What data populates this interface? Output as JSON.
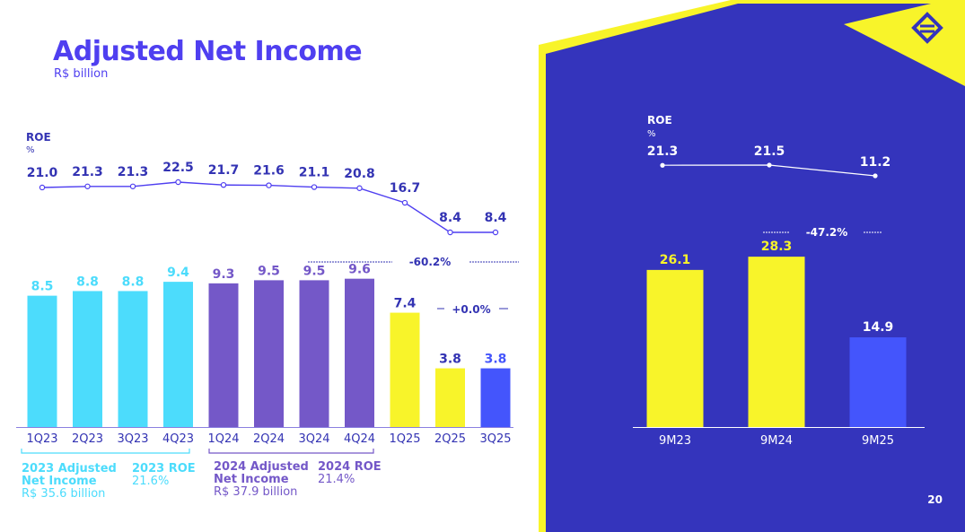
{
  "page": {
    "title": "Adjusted Net Income",
    "subtitle": "R$ billion",
    "page_number": "20"
  },
  "colors": {
    "primary": "#4f3ff0",
    "cyan": "#4cdcfc",
    "purple": "#7458c8",
    "yellow": "#f8f42a",
    "blue": "#4455fc",
    "panel": "#3434bc"
  },
  "chart_data": [
    {
      "type": "bar",
      "title": "Adjusted Net Income",
      "ylabel": "R$ billion",
      "categories": [
        "1Q23",
        "2Q23",
        "3Q23",
        "4Q23",
        "1Q24",
        "2Q24",
        "3Q24",
        "4Q24",
        "1Q25",
        "2Q25",
        "3Q25"
      ],
      "values": [
        8.5,
        8.8,
        8.8,
        9.4,
        9.3,
        9.5,
        9.5,
        9.6,
        7.4,
        3.8,
        3.8
      ],
      "value_labels": [
        "8.5",
        "8.8",
        "8.8",
        "9.4",
        "9.3",
        "9.5",
        "9.5",
        "9.6",
        "7.4",
        "3.8",
        "3.8"
      ],
      "bar_colors": [
        "#4cdcfc",
        "#4cdcfc",
        "#4cdcfc",
        "#4cdcfc",
        "#7458c8",
        "#7458c8",
        "#7458c8",
        "#7458c8",
        "#f8f42a",
        "#f8f42a",
        "#4455fc"
      ],
      "label_colors": [
        "#4cdcfc",
        "#4cdcfc",
        "#4cdcfc",
        "#4cdcfc",
        "#7458c8",
        "#7458c8",
        "#7458c8",
        "#7458c8",
        "#3333b3",
        "#3333b3",
        "#4455fc"
      ],
      "ylim": [
        0,
        10.8
      ],
      "roe": {
        "label": "ROE",
        "unit": "%",
        "values": [
          21.0,
          21.3,
          21.3,
          22.5,
          21.7,
          21.6,
          21.1,
          20.8,
          16.7,
          8.4,
          8.4
        ],
        "labels": [
          "21.0",
          "21.3",
          "21.3",
          "22.5",
          "21.7",
          "21.6",
          "21.1",
          "20.8",
          "16.7",
          "8.4",
          "8.4"
        ]
      },
      "annotations": {
        "yoy": "-60.2%",
        "qoq": "+0.0%"
      }
    },
    {
      "type": "bar",
      "categories": [
        "9M23",
        "9M24",
        "9M25"
      ],
      "values": [
        26.1,
        28.3,
        14.9
      ],
      "value_labels": [
        "26.1",
        "28.3",
        "14.9"
      ],
      "bar_colors": [
        "#f8f42a",
        "#f8f42a",
        "#4455fc"
      ],
      "label_colors": [
        "#f8f42a",
        "#f8f42a",
        "#ffffff"
      ],
      "ylim": [
        0,
        31
      ],
      "roe": {
        "label": "ROE",
        "unit": "%",
        "values": [
          21.3,
          21.5,
          11.2
        ],
        "labels": [
          "21.3",
          "21.5",
          "11.2"
        ]
      },
      "annotations": {
        "change": "-47.2%"
      }
    }
  ],
  "footnotes": {
    "y2023": {
      "title": "2023 Adjusted Net Income",
      "value": "R$ 35.6 billion",
      "roe_title": "2023 ROE",
      "roe_value": "21.6%"
    },
    "y2024": {
      "title": "2024 Adjusted Net Income",
      "value": "R$ 37.9 billion",
      "roe_title": "2024 ROE",
      "roe_value": "21.4%"
    }
  }
}
